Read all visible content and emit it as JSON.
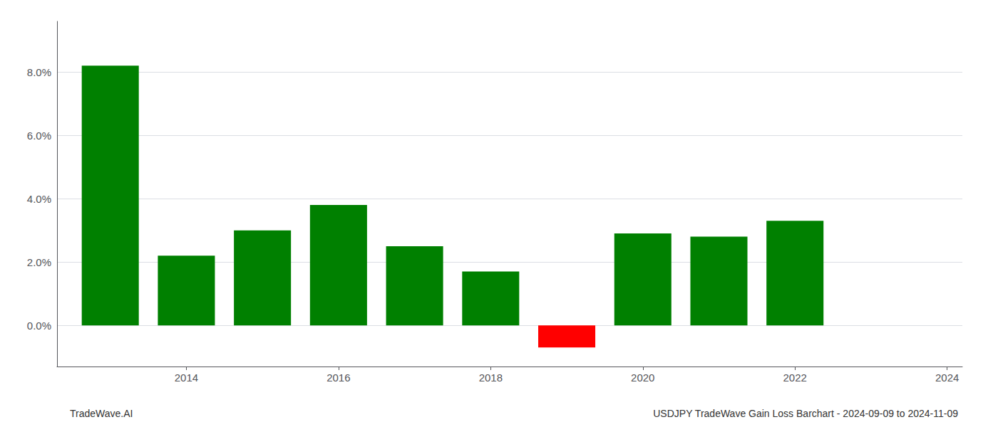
{
  "chart_data": {
    "type": "bar",
    "x": [
      2013,
      2014,
      2015,
      2016,
      2017,
      2018,
      2019,
      2020,
      2021,
      2022,
      2023
    ],
    "values": [
      0.082,
      0.022,
      0.03,
      0.038,
      0.025,
      0.017,
      -0.007,
      0.029,
      0.028,
      0.033,
      0.0
    ],
    "colors": [
      "#008000",
      "#008000",
      "#008000",
      "#008000",
      "#008000",
      "#008000",
      "#ff0000",
      "#008000",
      "#008000",
      "#008000",
      "#008000"
    ],
    "xlim": [
      2012.3,
      2024.2
    ],
    "xticks": [
      2014,
      2016,
      2018,
      2020,
      2022,
      2024
    ],
    "ylim": [
      -0.013,
      0.096
    ],
    "yticks": [
      {
        "value": 0.0,
        "label": "0.0%"
      },
      {
        "value": 0.02,
        "label": "2.0%"
      },
      {
        "value": 0.04,
        "label": "4.0%"
      },
      {
        "value": 0.06,
        "label": "6.0%"
      },
      {
        "value": 0.08,
        "label": "8.0%"
      }
    ],
    "grid": "y",
    "annotations": [
      "TradeWave.AI",
      "USDJPY TradeWave Gain Loss Barchart - 2024-09-09 to 2024-11-09"
    ]
  }
}
